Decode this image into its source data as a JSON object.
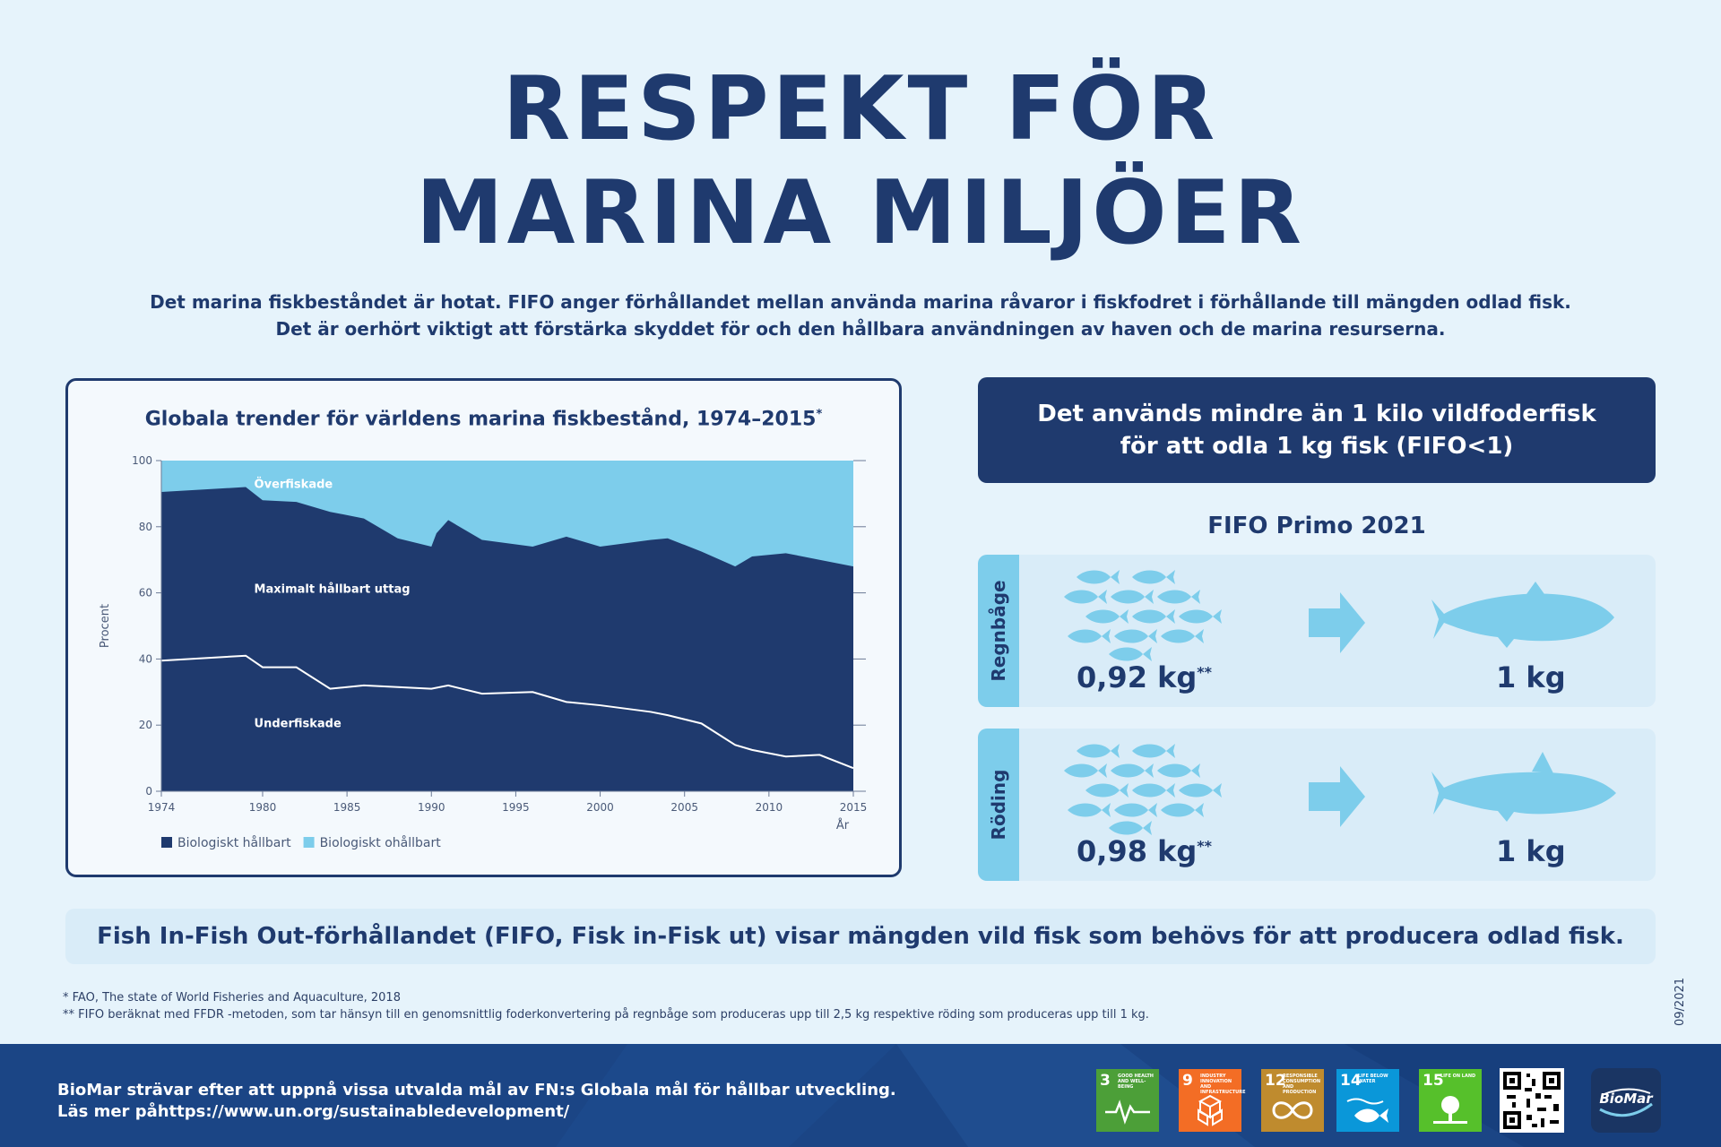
{
  "header": {
    "title_line1": "RESPEKT FÖR",
    "title_line2": "MARINA MILJÖER",
    "intro_line1": "Det marina fiskbeståndet är hotat. FIFO anger förhållandet mellan använda marina råvaror i fiskfodret i förhållande till mängden odlad fisk.",
    "intro_line2": "Det är oerhört viktigt att förstärka skyddet för och den hållbara användningen av haven och de marina resurserna."
  },
  "chart_data": {
    "type": "area",
    "title": "Globala trender för världens marina fiskbestånd, 1974–2015",
    "title_marker": "*",
    "ylabel": "Procent",
    "xlabel": "År",
    "xlim": [
      1974,
      2015
    ],
    "ylim": [
      0,
      100
    ],
    "x_ticks": [
      "1974",
      "1980",
      "1985",
      "1990",
      "1995",
      "2000",
      "2005",
      "2010",
      "2015"
    ],
    "y_ticks": [
      "0",
      "20",
      "40",
      "60",
      "80",
      "100"
    ],
    "grid": false,
    "legend_position": "bottom-left",
    "series": [
      {
        "name": "Biologiskt hållbart",
        "color": "#1f3a6e",
        "x": [
          1974,
          1979,
          1980,
          1982,
          1984,
          1986,
          1988,
          1990,
          1990.3,
          1991,
          1993,
          1996,
          1998,
          2000,
          2003,
          2004,
          2006,
          2008,
          2009,
          2011,
          2013,
          2015
        ],
        "y": [
          90.5,
          92,
          88,
          87.5,
          84.5,
          82.5,
          76.5,
          74,
          78,
          82,
          76,
          74,
          77,
          74,
          76,
          76.5,
          72.5,
          68,
          71,
          72,
          70,
          68
        ]
      },
      {
        "name": "Biologiskt ohållbart",
        "color": "#7dcdeb",
        "x": [
          1974,
          2015
        ],
        "y": [
          100,
          100
        ]
      }
    ],
    "boundary_line": {
      "color": "#ffffff",
      "x": [
        1974,
        1979,
        1980,
        1982,
        1984,
        1986,
        1988,
        1990,
        1991,
        1993,
        1996,
        1998,
        2000,
        2003,
        2004,
        2006,
        2008,
        2009,
        2011,
        2013,
        2015
      ],
      "y": [
        39.5,
        41,
        37.5,
        37.5,
        31,
        32,
        31.5,
        31,
        32,
        29.5,
        30,
        27,
        26,
        24,
        23,
        20.5,
        14,
        12.5,
        10.5,
        11,
        7
      ]
    },
    "annotations": [
      {
        "text": "Överfiskade",
        "x": 1979.5,
        "y": 91.8
      },
      {
        "text": "Maximalt hållbart uttag",
        "x": 1979.5,
        "y": 60
      },
      {
        "text": "Underfiskade",
        "x": 1979.5,
        "y": 19.4
      }
    ]
  },
  "fifo": {
    "header_line1": "Det används mindre än 1 kilo vildfoderfisk",
    "header_line2": "för att odla 1 kg fisk (FIFO<1)",
    "subtitle": "FIFO Primo 2021",
    "rows": [
      {
        "species": "Regnbåge",
        "input": "0,92 kg",
        "input_marker": "**",
        "output": "1 kg",
        "icon": "rainbow-trout-icon"
      },
      {
        "species": "Röding",
        "input": "0,98 kg",
        "input_marker": "**",
        "output": "1 kg",
        "icon": "arctic-char-icon"
      }
    ],
    "colors": {
      "dark": "#1f3a6e",
      "light": "#7dcdeb",
      "panel": "#d9ecf8"
    }
  },
  "definition": "Fish In-Fish Out-förhållandet (FIFO, Fisk in-Fisk ut) visar mängden vild fisk som behövs för att producera odlad fisk.",
  "footnotes": {
    "note1": "* FAO, The state of World Fisheries and Aquaculture, 2018",
    "note2": "** FIFO beräknat med FFDR -metoden, som tar hänsyn till en genomsnittlig foderkonvertering på regnbåge som produceras upp till 2,5 kg respektive röding som produceras upp till 1 kg.",
    "date": "09/2021"
  },
  "footer": {
    "line1": "BioMar strävar efter att uppnå vissa utvalda mål av FN:s Globala mål för hållbar utveckling.",
    "line2": "Läs mer påhttps://www.un.org/sustainabledevelopment/",
    "sdgs": [
      {
        "number": "3",
        "label": "Good health and well-being",
        "color": "#4c9f38",
        "icon": "heartbeat-icon"
      },
      {
        "number": "9",
        "label": "Industry innovation and infrastructure",
        "color": "#f36d25",
        "icon": "cubes-icon"
      },
      {
        "number": "12",
        "label": "Responsible consumption and production",
        "color": "#bf8b2e",
        "icon": "infinity-icon"
      },
      {
        "number": "14",
        "label": "Life below water",
        "color": "#0a97d9",
        "icon": "fish-icon"
      },
      {
        "number": "15",
        "label": "Life on land",
        "color": "#56c02b",
        "icon": "tree-icon"
      }
    ],
    "logo": "BioMar"
  }
}
